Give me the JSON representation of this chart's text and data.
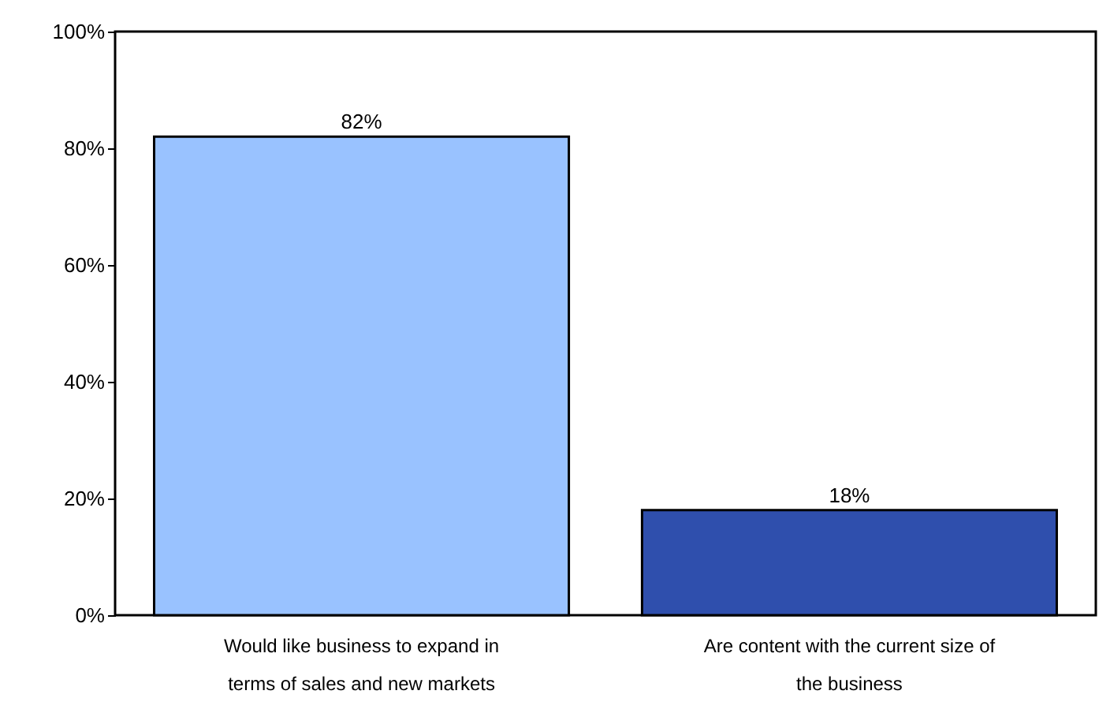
{
  "chart_data": {
    "type": "bar",
    "categories": [
      "Would like business to expand in terms of sales and new markets",
      "Are content with the current size of the business"
    ],
    "values": [
      82,
      18
    ],
    "colors": [
      "#99c2ff",
      "#2f4fad"
    ],
    "value_labels": [
      "82%",
      "18%"
    ],
    "ylim": [
      0,
      100
    ],
    "yticks": [
      {
        "value": 0,
        "label": "0%"
      },
      {
        "value": 20,
        "label": "20%"
      },
      {
        "value": 40,
        "label": "40%"
      },
      {
        "value": 60,
        "label": "60%"
      },
      {
        "value": 80,
        "label": "80%"
      },
      {
        "value": 100,
        "label": "100%"
      }
    ],
    "grid": false
  }
}
